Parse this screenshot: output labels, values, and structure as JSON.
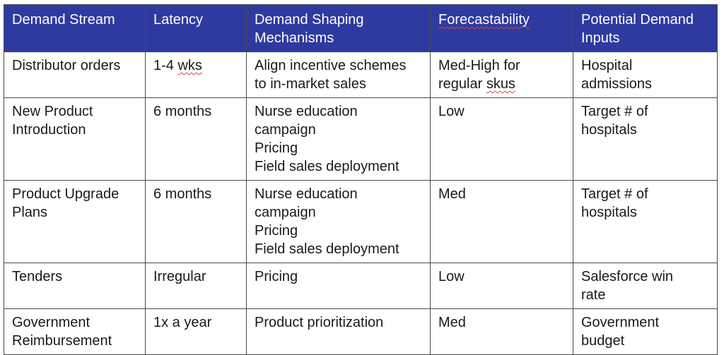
{
  "table": {
    "headers": [
      "Demand Stream",
      "Latency",
      "Demand Shaping Mechanisms",
      "Forecastability",
      "Potential Demand Inputs"
    ],
    "rows": [
      {
        "stream": "Distributor orders",
        "latency": "1-4 wks",
        "mechanisms": [
          "Align incentive schemes",
          "to in-market sales"
        ],
        "forecastability": [
          "Med-High for",
          "regular skus"
        ],
        "inputs": [
          "Hospital",
          "admissions"
        ]
      },
      {
        "stream": [
          "New Product",
          "Introduction"
        ],
        "latency": "6 months",
        "mechanisms": [
          "Nurse education",
          "campaign",
          "Pricing",
          "Field sales deployment"
        ],
        "forecastability": "Low",
        "inputs": [
          "Target # of",
          "hospitals"
        ]
      },
      {
        "stream": [
          "Product Upgrade",
          "Plans"
        ],
        "latency": "6 months",
        "mechanisms": [
          "Nurse education",
          "campaign",
          "Pricing",
          "Field sales deployment"
        ],
        "forecastability": "Med",
        "inputs": [
          "Target # of",
          "hospitals"
        ]
      },
      {
        "stream": "Tenders",
        "latency": "Irregular",
        "mechanisms": "Pricing",
        "forecastability": "Low",
        "inputs": [
          "Salesforce win",
          "rate"
        ]
      },
      {
        "stream": [
          "Government",
          "Reimbursement"
        ],
        "latency": "1x a year",
        "mechanisms": "Product prioritization",
        "forecastability": "Med",
        "inputs": [
          "Government",
          "budget"
        ]
      }
    ]
  },
  "colors": {
    "header_bg": "#2e3aa0",
    "header_text": "#ffffff",
    "border": "#4a4a4a",
    "spellcheck": "#e04040"
  }
}
